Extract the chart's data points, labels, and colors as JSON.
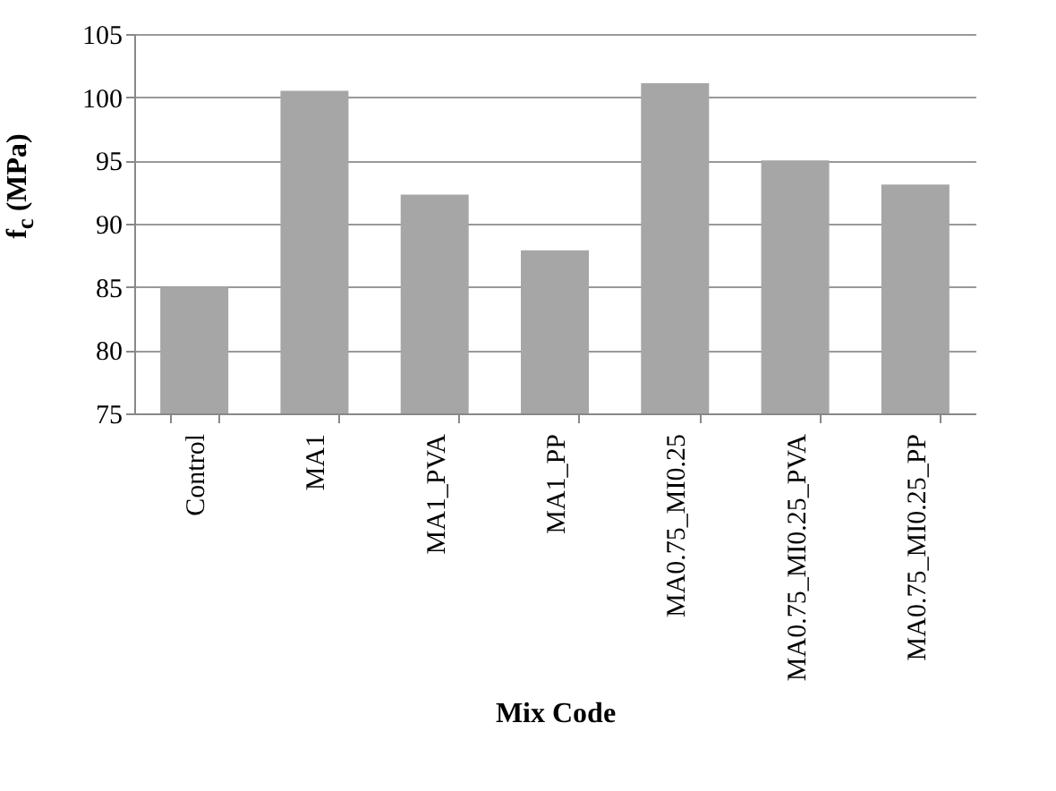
{
  "chart_data": {
    "type": "bar",
    "xlabel": "Mix Code",
    "ylabel": "f$_{c}$ (MPa)",
    "categories": [
      "Control",
      "MA1",
      "MA1_PVA",
      "MA1_PP",
      "MA0.75_MI0.25",
      "MA0.75_MI0.25_PVA",
      "MA0.75_MI0.25_PP"
    ],
    "values": [
      85.0,
      100.5,
      92.3,
      87.9,
      101.1,
      95.0,
      93.1
    ],
    "color": "#a6a6a6",
    "ylim": [
      75,
      105
    ],
    "yticks": [
      75,
      80,
      85,
      90,
      95,
      100,
      105
    ],
    "grid": "y"
  }
}
